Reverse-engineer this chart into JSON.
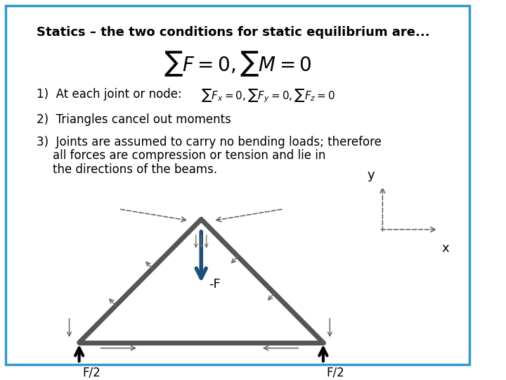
{
  "title": "Statics – the two conditions for static equilibrium are...",
  "formula_main": "\\sum F = 0, \\sum M = 0",
  "item1_text": "At each joint or node:",
  "item1_formula": "\\sum F_x = 0, \\sum F_y = 0, \\sum F_z = 0",
  "item2_text": "Triangles cancel out moments",
  "item3_text": "Joints are assumed to carry no bending loads; therefore\n      all forces are compression or tension and lie in\n      the directions of the beams.",
  "border_color": "#3399CC",
  "bg_color": "#FFFFFF",
  "text_color": "#000000",
  "truss_color": "#555555",
  "arrow_blue": "#1F4E79",
  "truss_lw": 5,
  "x_label": "x",
  "y_label": "y"
}
